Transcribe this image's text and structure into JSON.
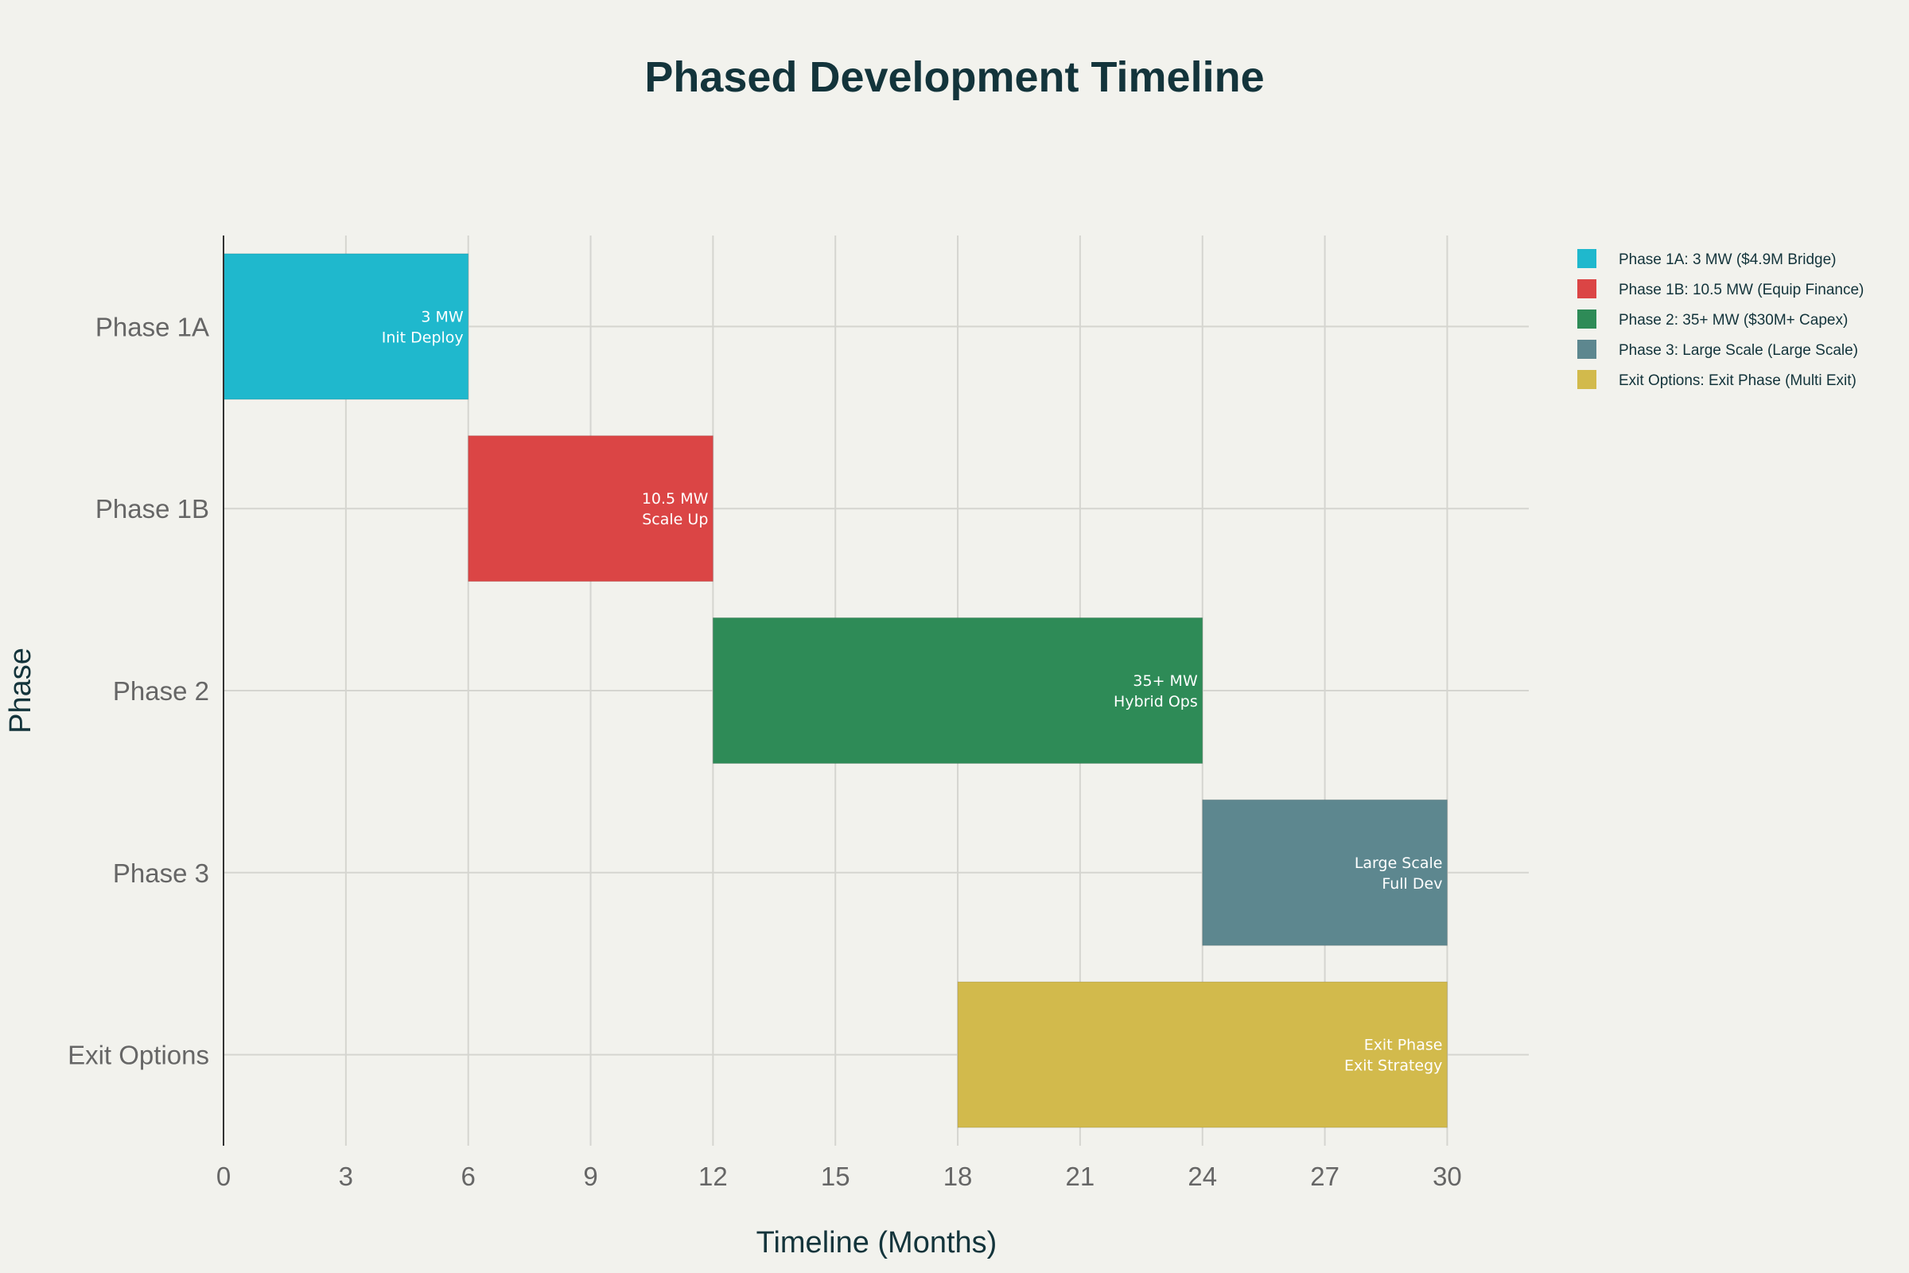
{
  "chart_data": {
    "type": "bar",
    "orientation": "horizontal-gantt",
    "title": "Phased Development Timeline",
    "xlabel": "Timeline (Months)",
    "ylabel": "Phase",
    "xlim": [
      0,
      32
    ],
    "xticks": [
      0,
      3,
      6,
      9,
      12,
      15,
      18,
      21,
      24,
      27,
      30
    ],
    "grid": true,
    "legend_position": "right",
    "categories": [
      "Phase 1A",
      "Phase 1B",
      "Phase 2",
      "Phase 3",
      "Exit Options"
    ],
    "tasks": [
      {
        "category": "Phase 1A",
        "start": 0,
        "end": 6,
        "color": "#1fb8cd",
        "label_lines": [
          "3 MW",
          "Init Deploy"
        ],
        "legend": "Phase 1A: 3 MW ($4.9M Bridge)"
      },
      {
        "category": "Phase 1B",
        "start": 6,
        "end": 12,
        "color": "#db4545",
        "label_lines": [
          "10.5 MW",
          "Scale Up"
        ],
        "legend": "Phase 1B: 10.5 MW (Equip Finance)"
      },
      {
        "category": "Phase 2",
        "start": 12,
        "end": 24,
        "color": "#2e8b57",
        "label_lines": [
          "35+ MW",
          "Hybrid Ops"
        ],
        "legend": "Phase 2: 35+ MW ($30M+ Capex)"
      },
      {
        "category": "Phase 3",
        "start": 24,
        "end": 30,
        "color": "#5d878f",
        "label_lines": [
          "Large Scale",
          "Full Dev"
        ],
        "legend": "Phase 3: Large Scale (Large Scale)"
      },
      {
        "category": "Exit Options",
        "start": 18,
        "end": 30,
        "color": "#d2ba4c",
        "label_lines": [
          "Exit Phase",
          "Exit Strategy"
        ],
        "legend": "Exit Options: Exit Phase (Multi Exit)"
      }
    ]
  }
}
